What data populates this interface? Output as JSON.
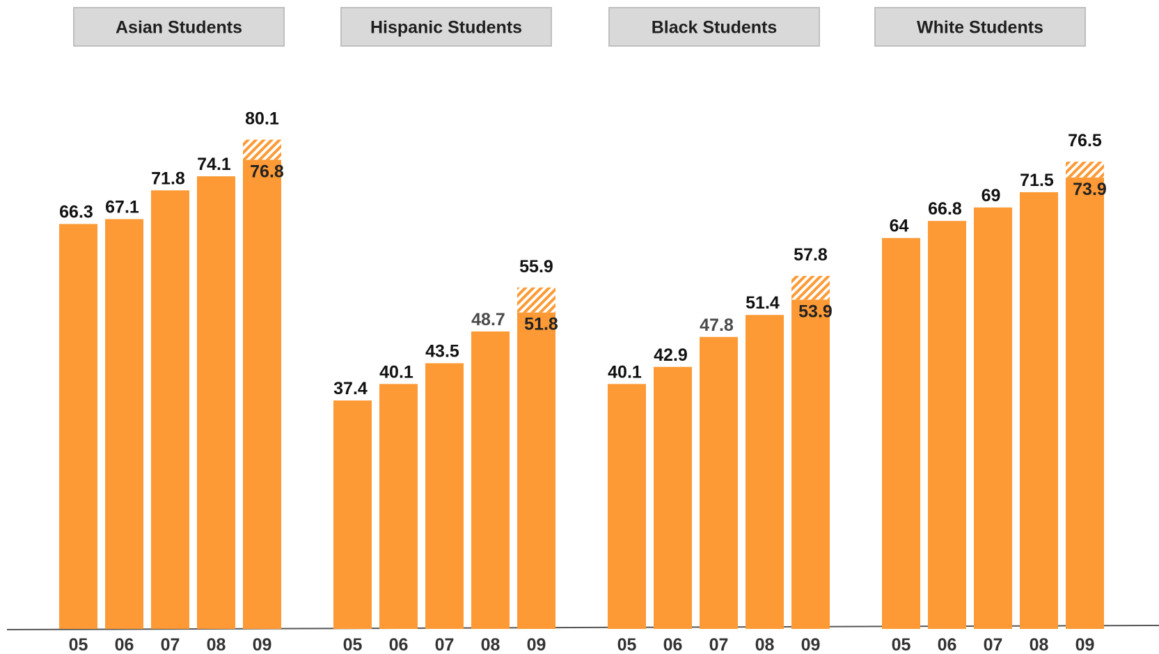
{
  "chart_data": {
    "type": "bar",
    "categories": [
      "05",
      "06",
      "07",
      "08",
      "09"
    ],
    "groups": [
      {
        "name": "Asian Students",
        "values": [
          66.3,
          67.1,
          71.8,
          74.1,
          76.8
        ],
        "extended_last": 80.1
      },
      {
        "name": "Hispanic Students",
        "values": [
          37.4,
          40.1,
          43.5,
          48.7,
          51.8
        ],
        "extended_last": 55.9
      },
      {
        "name": "Black Students",
        "values": [
          40.1,
          42.9,
          47.8,
          51.4,
          53.9
        ],
        "extended_last": 57.8
      },
      {
        "name": "White Students",
        "values": [
          64,
          66.8,
          69,
          71.5,
          73.9
        ],
        "extended_last": 76.5
      }
    ],
    "ylim": [
      0,
      92
    ],
    "grid": false,
    "legend": "none",
    "colors": {
      "bar": "#fd9a35",
      "hatch": "#fd9a35",
      "header_fill": "#d9d9d9"
    }
  }
}
